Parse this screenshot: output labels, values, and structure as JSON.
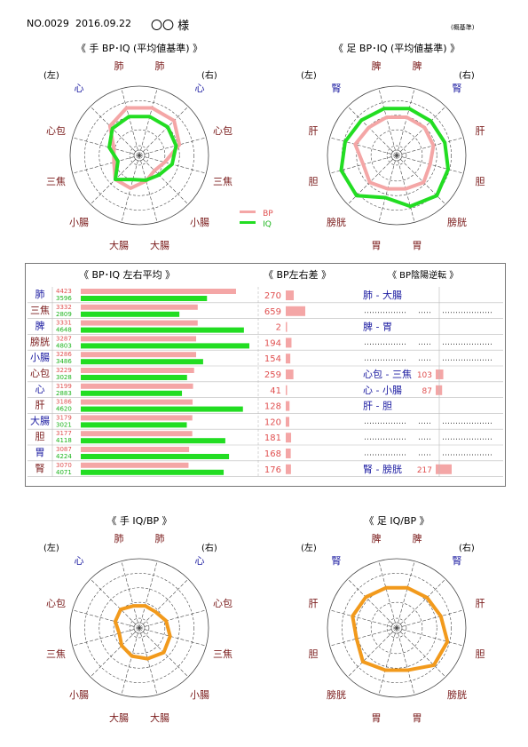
{
  "header": {
    "no": "NO.0029",
    "date": "2016.09.22",
    "name": "〇〇 様",
    "basis": "(概基準)"
  },
  "legend": {
    "bp": "BP",
    "iq": "IQ"
  },
  "colors": {
    "bp": "#f4a6a6",
    "iq": "#22dd22",
    "ratio": "#f29a1c",
    "bpText": "#e05050",
    "iqText": "#1bb41b",
    "label": "#7a1b1b",
    "labelBlue": "#1a1aa0"
  },
  "charts": [
    {
      "title": "《 手 BP･IQ (平均値基準) 》",
      "left": "(左)",
      "right": "(右)",
      "labels": [
        "肺",
        "肺",
        "心",
        "心包",
        "三焦",
        "小腸",
        "大腸",
        "大腸",
        "小腸",
        "三焦",
        "心包",
        "心"
      ],
      "series": [
        {
          "name": "BP",
          "values": [
            0.71,
            0.71,
            0.71,
            0.6,
            0.38,
            0.31,
            0.38,
            0.49,
            0.49,
            0.38,
            0.38,
            0.6
          ]
        },
        {
          "name": "IQ",
          "values": [
            0.58,
            0.58,
            0.58,
            0.55,
            0.49,
            0.4,
            0.37,
            0.36,
            0.49,
            0.32,
            0.45,
            0.55
          ]
        }
      ]
    },
    {
      "title": "《 足 BP･IQ (平均値基準) 》",
      "left": "(左)",
      "right": "(右)",
      "labels": [
        "脾",
        "脾",
        "腎",
        "肝",
        "胆",
        "膀胱",
        "胃",
        "胃",
        "膀胱",
        "胆",
        "肝",
        "腎"
      ],
      "series": [
        {
          "name": "BP",
          "values": [
            0.57,
            0.57,
            0.57,
            0.55,
            0.5,
            0.55,
            0.5,
            0.5,
            0.55,
            0.5,
            0.62,
            0.57
          ]
        },
        {
          "name": "IQ",
          "values": [
            0.7,
            0.7,
            0.7,
            0.72,
            0.77,
            0.82,
            0.76,
            0.63,
            0.82,
            0.83,
            0.77,
            0.72
          ]
        }
      ]
    },
    {
      "title": "《 手 IQ/BP 》",
      "left": "(左)",
      "right": "(右)",
      "labels": [
        "肺",
        "肺",
        "心",
        "心包",
        "三焦",
        "小腸",
        "大腸",
        "大腸",
        "小腸",
        "三焦",
        "心包",
        "心"
      ],
      "series": [
        {
          "name": "IQ/BP",
          "values": [
            0.33,
            0.33,
            0.33,
            0.4,
            0.46,
            0.5,
            0.46,
            0.42,
            0.36,
            0.3,
            0.36,
            0.38
          ]
        }
      ]
    },
    {
      "title": "《 足 IQ/BP 》",
      "left": "(左)",
      "right": "(右)",
      "labels": [
        "脾",
        "脾",
        "腎",
        "肝",
        "胆",
        "膀胱",
        "胃",
        "胃",
        "膀胱",
        "胆",
        "肝",
        "腎"
      ],
      "series": [
        {
          "name": "IQ/BP",
          "values": [
            0.6,
            0.6,
            0.62,
            0.66,
            0.76,
            0.76,
            0.63,
            0.63,
            0.69,
            0.6,
            0.66,
            0.63
          ]
        }
      ]
    }
  ],
  "table": {
    "title_avg": "《 BP･IQ 左右平均 》",
    "title_diff": "《 BP左右差 》",
    "title_rev": "《 BP陰陽逆転 》",
    "bar_max": 4803,
    "diff_max": 659,
    "rows": [
      {
        "organ": "肺",
        "bp": 4423,
        "iq": 3596,
        "diff": 270
      },
      {
        "organ": "三焦",
        "bp": 3332,
        "iq": 2809,
        "diff": 659
      },
      {
        "organ": "脾",
        "bp": 3331,
        "iq": 4648,
        "diff": 2
      },
      {
        "organ": "膀胱",
        "bp": 3287,
        "iq": 4803,
        "diff": 194
      },
      {
        "organ": "小腸",
        "bp": 3286,
        "iq": 3486,
        "diff": 154
      },
      {
        "organ": "心包",
        "bp": 3229,
        "iq": 3028,
        "diff": 259
      },
      {
        "organ": "心",
        "bp": 3199,
        "iq": 2883,
        "diff": 41
      },
      {
        "organ": "肝",
        "bp": 3186,
        "iq": 4620,
        "diff": 128
      },
      {
        "organ": "大腸",
        "bp": 3179,
        "iq": 3021,
        "diff": 120
      },
      {
        "organ": "胆",
        "bp": 3177,
        "iq": 4118,
        "diff": 181
      },
      {
        "organ": "胃",
        "bp": 3087,
        "iq": 4224,
        "diff": 168
      },
      {
        "organ": "腎",
        "bp": 3070,
        "iq": 4071,
        "diff": 176
      }
    ],
    "reversal": [
      {
        "pair": "肺 - 大腸",
        "value": "",
        "active": true
      },
      {
        "pair": "",
        "value": "",
        "active": false
      },
      {
        "pair": "脾 - 胃",
        "value": "",
        "active": true
      },
      {
        "pair": "",
        "value": "",
        "active": false
      },
      {
        "pair": "",
        "value": "",
        "active": false
      },
      {
        "pair": "心包 - 三焦",
        "value": "103",
        "active": true
      },
      {
        "pair": "心 - 小腸",
        "value": "87",
        "active": true
      },
      {
        "pair": "肝 - 胆",
        "value": "",
        "active": true
      },
      {
        "pair": "",
        "value": "",
        "active": false
      },
      {
        "pair": "",
        "value": "",
        "active": false
      },
      {
        "pair": "",
        "value": "",
        "active": false
      },
      {
        "pair": "腎 - 膀胱",
        "value": "217",
        "active": true
      }
    ]
  }
}
